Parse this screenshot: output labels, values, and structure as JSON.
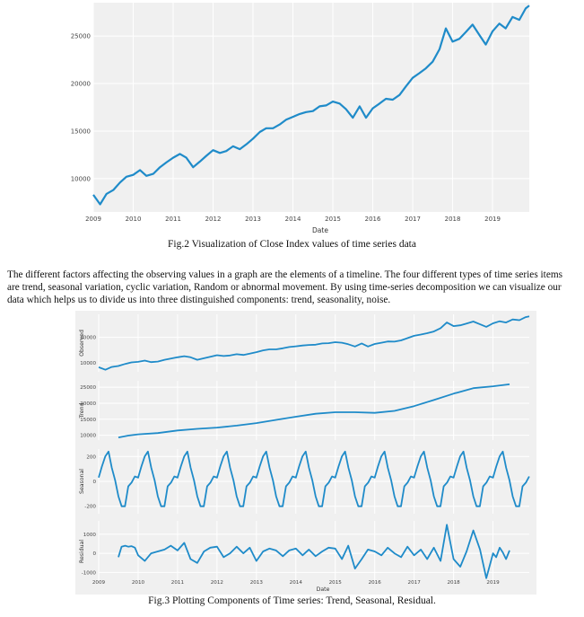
{
  "fig2": {
    "caption": "Fig.2 Visualization of Close Index values of time series data"
  },
  "paragraph": "The different factors affecting the observing values in a graph are the elements of a timeline. The four different types of time series items are trend, seasonal variation, cyclic variation, Random or abnormal movement. By using time-series decomposition we can visualize our data which helps us to divide us into three distinguished components: trend, seasonality, noise.",
  "fig3": {
    "caption": "Fig.3 Plotting Components of Time series: Trend, Seasonal, Residual."
  },
  "colors": {
    "line": "#1f8bc9",
    "panel": "#f0f0f0",
    "grid": "#ffffff"
  },
  "chart_data": [
    {
      "type": "line",
      "title": "",
      "xlabel": "Date",
      "ylabel": "",
      "xlim": [
        2009.0,
        2019.92
      ],
      "ylim": [
        6500,
        28500
      ],
      "x_ticks": [
        "2009",
        "2010",
        "2011",
        "2012",
        "2013",
        "2014",
        "2015",
        "2016",
        "2017",
        "2018",
        "2019"
      ],
      "y_ticks": [
        "10000",
        "15000",
        "20000",
        "25000"
      ],
      "grid": true,
      "series": [
        {
          "x": [
            2009.0,
            2009.17,
            2009.33,
            2009.5,
            2009.67,
            2009.83,
            2010.0,
            2010.17,
            2010.33,
            2010.5,
            2010.67,
            2010.83,
            2011.0,
            2011.17,
            2011.33,
            2011.5,
            2011.67,
            2011.83,
            2012.0,
            2012.17,
            2012.33,
            2012.5,
            2012.67,
            2012.83,
            2013.0,
            2013.17,
            2013.33,
            2013.5,
            2013.67,
            2013.83,
            2014.0,
            2014.17,
            2014.33,
            2014.5,
            2014.67,
            2014.83,
            2015.0,
            2015.17,
            2015.33,
            2015.5,
            2015.67,
            2015.83,
            2016.0,
            2016.17,
            2016.33,
            2016.5,
            2016.67,
            2016.83,
            2017.0,
            2017.17,
            2017.33,
            2017.5,
            2017.67,
            2017.83,
            2018.0,
            2018.17,
            2018.33,
            2018.5,
            2018.67,
            2018.83,
            2019.0,
            2019.17,
            2019.33,
            2019.5,
            2019.67,
            2019.83,
            2019.92
          ],
          "values": [
            8300,
            7300,
            8400,
            8800,
            9600,
            10200,
            10400,
            10900,
            10300,
            10500,
            11200,
            11700,
            12200,
            12600,
            12200,
            11200,
            11800,
            12400,
            13000,
            12700,
            12900,
            13400,
            13100,
            13600,
            14200,
            14900,
            15300,
            15300,
            15700,
            16200,
            16500,
            16800,
            17000,
            17100,
            17600,
            17700,
            18100,
            17900,
            17300,
            16400,
            17600,
            16400,
            17400,
            17900,
            18400,
            18300,
            18800,
            19700,
            20600,
            21100,
            21600,
            22300,
            23600,
            25800,
            24400,
            24700,
            25400,
            26200,
            25100,
            24100,
            25500,
            26300,
            25800,
            27000,
            26700,
            27900,
            28200
          ]
        }
      ]
    },
    {
      "type": "line",
      "title": "",
      "xlabel": "Date",
      "x_ticks": [
        "2009",
        "2010",
        "2011",
        "2012",
        "2013",
        "2014",
        "2015",
        "2016",
        "2017",
        "2018",
        "2019"
      ],
      "xlim": [
        2009.0,
        2019.92
      ],
      "grid": true,
      "panels": [
        {
          "ylabel": "Observed",
          "ylim": [
            6500,
            29000
          ],
          "y_ticks": [
            "10000",
            "20000"
          ],
          "x": [
            2009.0,
            2009.17,
            2009.33,
            2009.5,
            2009.67,
            2009.83,
            2010.0,
            2010.17,
            2010.33,
            2010.5,
            2010.67,
            2010.83,
            2011.0,
            2011.17,
            2011.33,
            2011.5,
            2011.67,
            2011.83,
            2012.0,
            2012.17,
            2012.33,
            2012.5,
            2012.67,
            2012.83,
            2013.0,
            2013.17,
            2013.33,
            2013.5,
            2013.67,
            2013.83,
            2014.0,
            2014.17,
            2014.33,
            2014.5,
            2014.67,
            2014.83,
            2015.0,
            2015.17,
            2015.33,
            2015.5,
            2015.67,
            2015.83,
            2016.0,
            2016.17,
            2016.33,
            2016.5,
            2016.67,
            2016.83,
            2017.0,
            2017.17,
            2017.33,
            2017.5,
            2017.67,
            2017.83,
            2018.0,
            2018.17,
            2018.33,
            2018.5,
            2018.67,
            2018.83,
            2019.0,
            2019.17,
            2019.33,
            2019.5,
            2019.67,
            2019.83,
            2019.92
          ],
          "values": [
            8300,
            7300,
            8400,
            8800,
            9600,
            10200,
            10400,
            10900,
            10300,
            10500,
            11200,
            11700,
            12200,
            12600,
            12200,
            11200,
            11800,
            12400,
            13000,
            12700,
            12900,
            13400,
            13100,
            13600,
            14200,
            14900,
            15300,
            15300,
            15700,
            16200,
            16500,
            16800,
            17000,
            17100,
            17600,
            17700,
            18100,
            17900,
            17300,
            16400,
            17600,
            16400,
            17400,
            17900,
            18400,
            18300,
            18800,
            19700,
            20600,
            21100,
            21600,
            22300,
            23600,
            25800,
            24400,
            24700,
            25400,
            26200,
            25100,
            24100,
            25500,
            26300,
            25800,
            27000,
            26700,
            27900,
            28200
          ]
        },
        {
          "ylabel": "Trend",
          "ylim": [
            8500,
            27000
          ],
          "y_ticks": [
            "10000",
            "15000",
            "20000",
            "25000"
          ],
          "x": [
            2009.5,
            2009.75,
            2010.0,
            2010.5,
            2011.0,
            2011.5,
            2012.0,
            2012.5,
            2013.0,
            2013.5,
            2014.0,
            2014.5,
            2015.0,
            2015.5,
            2016.0,
            2016.5,
            2017.0,
            2017.5,
            2018.0,
            2018.5,
            2019.0,
            2019.42
          ],
          "values": [
            9300,
            9900,
            10300,
            10700,
            11500,
            12000,
            12400,
            13000,
            13800,
            14800,
            15800,
            16700,
            17200,
            17200,
            17000,
            17600,
            19100,
            21000,
            23000,
            24700,
            25300,
            25900
          ]
        },
        {
          "ylabel": "Seasonal",
          "ylim": [
            -260,
            260
          ],
          "y_ticks": [
            "-200",
            "0",
            "200"
          ],
          "x": [
            2009.0,
            2009.083,
            2009.167,
            2009.25,
            2009.333,
            2009.417,
            2009.5,
            2009.583,
            2009.667,
            2009.75,
            2009.833,
            2009.917,
            2010.0,
            2010.083,
            2010.167,
            2010.25,
            2010.333,
            2010.417,
            2010.5,
            2010.583,
            2010.667,
            2010.75,
            2010.833,
            2010.917,
            2011.0,
            2011.083,
            2011.167,
            2011.25,
            2011.333,
            2011.417,
            2011.5,
            2011.583,
            2011.667,
            2011.75,
            2011.833,
            2011.917,
            2012.0,
            2012.083,
            2012.167,
            2012.25,
            2012.333,
            2012.417,
            2012.5,
            2012.583,
            2012.667,
            2012.75,
            2012.833,
            2012.917,
            2013.0,
            2013.083,
            2013.167,
            2013.25,
            2013.333,
            2013.417,
            2013.5,
            2013.583,
            2013.667,
            2013.75,
            2013.833,
            2013.917,
            2014.0,
            2014.083,
            2014.167,
            2014.25,
            2014.333,
            2014.417,
            2014.5,
            2014.583,
            2014.667,
            2014.75,
            2014.833,
            2014.917,
            2015.0,
            2015.083,
            2015.167,
            2015.25,
            2015.333,
            2015.417,
            2015.5,
            2015.583,
            2015.667,
            2015.75,
            2015.833,
            2015.917,
            2016.0,
            2016.083,
            2016.167,
            2016.25,
            2016.333,
            2016.417,
            2016.5,
            2016.583,
            2016.667,
            2016.75,
            2016.833,
            2016.917,
            2017.0,
            2017.083,
            2017.167,
            2017.25,
            2017.333,
            2017.417,
            2017.5,
            2017.583,
            2017.667,
            2017.75,
            2017.833,
            2017.917,
            2018.0,
            2018.083,
            2018.167,
            2018.25,
            2018.333,
            2018.417,
            2018.5,
            2018.583,
            2018.667,
            2018.75,
            2018.833,
            2018.917,
            2019.0,
            2019.083,
            2019.167,
            2019.25,
            2019.333,
            2019.417,
            2019.5,
            2019.583,
            2019.667,
            2019.75,
            2019.833,
            2019.917
          ],
          "values": [
            30,
            120,
            200,
            240,
            110,
            10,
            -120,
            -200,
            -200,
            -40,
            -10,
            40,
            30,
            120,
            200,
            240,
            110,
            10,
            -120,
            -200,
            -200,
            -40,
            -10,
            40,
            30,
            120,
            200,
            240,
            110,
            10,
            -120,
            -200,
            -200,
            -40,
            -10,
            40,
            30,
            120,
            200,
            240,
            110,
            10,
            -120,
            -200,
            -200,
            -40,
            -10,
            40,
            30,
            120,
            200,
            240,
            110,
            10,
            -120,
            -200,
            -200,
            -40,
            -10,
            40,
            30,
            120,
            200,
            240,
            110,
            10,
            -120,
            -200,
            -200,
            -40,
            -10,
            40,
            30,
            120,
            200,
            240,
            110,
            10,
            -120,
            -200,
            -200,
            -40,
            -10,
            40,
            30,
            120,
            200,
            240,
            110,
            10,
            -120,
            -200,
            -200,
            -40,
            -10,
            40,
            30,
            120,
            200,
            240,
            110,
            10,
            -120,
            -200,
            -200,
            -40,
            -10,
            40,
            30,
            120,
            200,
            240,
            110,
            10,
            -120,
            -200,
            -200,
            -40,
            -10,
            40,
            30,
            120,
            200,
            240,
            110,
            10,
            -120,
            -200,
            -200,
            -40,
            -10,
            40
          ]
        },
        {
          "ylabel": "Residual",
          "ylim": [
            -1500,
            1700
          ],
          "y_ticks": [
            "1000",
            "0",
            "-1000"
          ],
          "x": [
            2009.5,
            2009.58,
            2009.67,
            2009.75,
            2009.83,
            2009.92,
            2010.0,
            2010.17,
            2010.33,
            2010.5,
            2010.67,
            2010.83,
            2011.0,
            2011.17,
            2011.33,
            2011.5,
            2011.67,
            2011.83,
            2012.0,
            2012.17,
            2012.33,
            2012.5,
            2012.67,
            2012.83,
            2013.0,
            2013.17,
            2013.33,
            2013.5,
            2013.67,
            2013.83,
            2014.0,
            2014.17,
            2014.33,
            2014.5,
            2014.67,
            2014.83,
            2015.0,
            2015.17,
            2015.33,
            2015.5,
            2015.67,
            2015.83,
            2016.0,
            2016.17,
            2016.33,
            2016.5,
            2016.67,
            2016.83,
            2017.0,
            2017.17,
            2017.33,
            2017.5,
            2017.67,
            2017.83,
            2018.0,
            2018.17,
            2018.33,
            2018.5,
            2018.67,
            2018.83,
            2019.0,
            2019.08,
            2019.17,
            2019.25,
            2019.33,
            2019.42
          ],
          "values": [
            -200,
            350,
            400,
            350,
            380,
            300,
            -100,
            -400,
            0,
            100,
            200,
            400,
            150,
            550,
            -300,
            -500,
            100,
            300,
            350,
            -200,
            0,
            350,
            0,
            300,
            -400,
            100,
            250,
            150,
            -150,
            150,
            250,
            -100,
            200,
            -150,
            100,
            300,
            250,
            -300,
            400,
            -800,
            -300,
            200,
            100,
            -100,
            300,
            0,
            -200,
            350,
            -100,
            200,
            -300,
            300,
            -400,
            1500,
            -300,
            -700,
            100,
            1200,
            200,
            -1300,
            0,
            -200,
            300,
            50,
            -300,
            150
          ]
        }
      ]
    }
  ]
}
